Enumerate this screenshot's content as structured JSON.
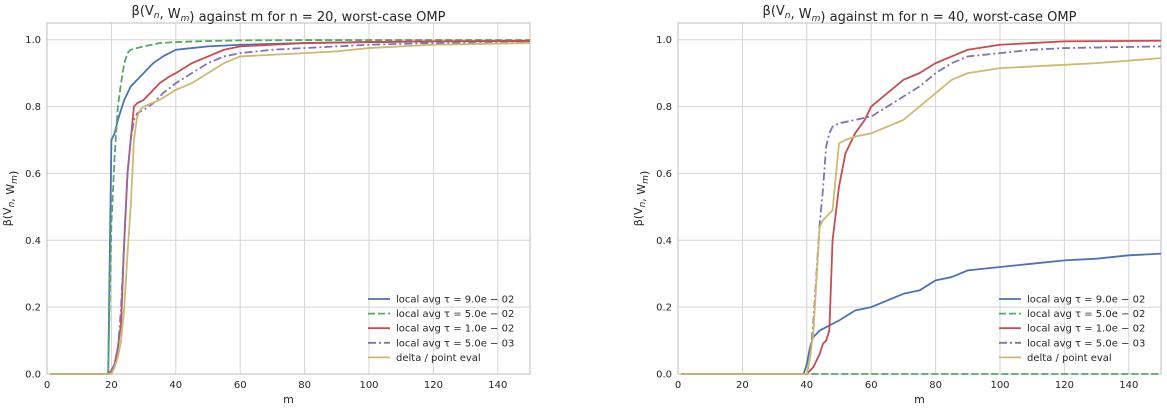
{
  "chart_data": [
    {
      "type": "line",
      "title": "β(V_n, W_m) against m for n = 20, worst-case OMP",
      "xlabel": "m",
      "ylabel": "β(V_n, W_m)",
      "xlim": [
        0,
        150
      ],
      "ylim": [
        0,
        1.05
      ],
      "xticks": [
        0,
        20,
        40,
        60,
        80,
        100,
        120,
        140
      ],
      "yticks": [
        0.0,
        0.2,
        0.4,
        0.6,
        0.8,
        1.0
      ],
      "xtick_labels": [
        "0",
        "20",
        "40",
        "60",
        "80",
        "100",
        "120",
        "140"
      ],
      "ytick_labels": [
        "0.0",
        "0.2",
        "0.4",
        "0.6",
        "0.8",
        "1.0"
      ],
      "grid": true,
      "legend": "lower-right",
      "series": [
        {
          "name": "local avg τ = 9.0e − 02",
          "color": "#4c72b0",
          "style": "solid",
          "x": [
            1,
            19,
            20,
            21,
            22,
            24,
            26,
            28,
            30,
            33,
            36,
            40,
            45,
            50,
            60,
            80,
            100,
            120,
            150
          ],
          "y": [
            0,
            0,
            0.7,
            0.72,
            0.76,
            0.82,
            0.86,
            0.88,
            0.9,
            0.93,
            0.95,
            0.97,
            0.975,
            0.98,
            0.985,
            0.99,
            0.993,
            0.995,
            0.997
          ]
        },
        {
          "name": "local avg τ = 5.0e − 02",
          "color": "#55a868",
          "style": "dashed",
          "x": [
            1,
            19,
            20,
            21,
            22,
            23,
            24,
            25,
            26,
            30,
            35,
            40,
            50,
            60,
            80,
            100,
            150
          ],
          "y": [
            0,
            0,
            0.45,
            0.65,
            0.8,
            0.87,
            0.93,
            0.96,
            0.97,
            0.98,
            0.99,
            0.993,
            0.996,
            0.998,
            0.999,
            0.999,
            0.999
          ]
        },
        {
          "name": "local avg τ = 1.0e − 02",
          "color": "#c44e52",
          "style": "solid",
          "x": [
            1,
            19,
            20,
            21,
            22,
            23,
            24,
            25,
            26,
            27,
            28,
            30,
            32,
            35,
            38,
            40,
            45,
            50,
            55,
            60,
            70,
            80,
            100,
            120,
            150
          ],
          "y": [
            0,
            0,
            0.01,
            0.03,
            0.08,
            0.15,
            0.4,
            0.6,
            0.7,
            0.8,
            0.81,
            0.82,
            0.84,
            0.87,
            0.89,
            0.9,
            0.93,
            0.95,
            0.97,
            0.98,
            0.985,
            0.99,
            0.993,
            0.995,
            0.996
          ]
        },
        {
          "name": "local avg τ = 5.0e − 03",
          "color": "#8172b2",
          "style": "dashdot",
          "x": [
            1,
            19,
            20,
            21,
            22,
            23,
            24,
            25,
            26,
            27,
            28,
            30,
            33,
            36,
            40,
            45,
            50,
            55,
            60,
            70,
            80,
            90,
            100,
            120,
            150
          ],
          "y": [
            0,
            0,
            0.01,
            0.03,
            0.07,
            0.2,
            0.4,
            0.6,
            0.7,
            0.76,
            0.78,
            0.79,
            0.81,
            0.84,
            0.87,
            0.9,
            0.93,
            0.95,
            0.96,
            0.97,
            0.975,
            0.98,
            0.985,
            0.99,
            0.99
          ]
        },
        {
          "name": "delta / point eval",
          "color": "#ccb974",
          "style": "solid",
          "x": [
            1,
            19,
            20,
            21,
            22,
            23,
            24,
            25,
            26,
            27,
            28,
            29,
            30,
            35,
            40,
            45,
            50,
            55,
            60,
            70,
            80,
            90,
            100,
            110,
            120,
            150
          ],
          "y": [
            0,
            0,
            0,
            0.02,
            0.05,
            0.1,
            0.2,
            0.36,
            0.5,
            0.7,
            0.77,
            0.79,
            0.8,
            0.82,
            0.85,
            0.87,
            0.9,
            0.93,
            0.95,
            0.955,
            0.96,
            0.965,
            0.975,
            0.98,
            0.985,
            0.99
          ]
        }
      ]
    },
    {
      "type": "line",
      "title": "β(V_n, W_m) against m for n = 40, worst-case OMP",
      "xlabel": "m",
      "ylabel": "β(V_n, W_m)",
      "xlim": [
        0,
        150
      ],
      "ylim": [
        0,
        1.05
      ],
      "xticks": [
        0,
        20,
        40,
        60,
        80,
        100,
        120,
        140
      ],
      "yticks": [
        0.0,
        0.2,
        0.4,
        0.6,
        0.8,
        1.0
      ],
      "xtick_labels": [
        "0",
        "20",
        "40",
        "60",
        "80",
        "100",
        "120",
        "140"
      ],
      "ytick_labels": [
        "0.0",
        "0.2",
        "0.4",
        "0.6",
        "0.8",
        "1.0"
      ],
      "grid": true,
      "legend": "lower-right",
      "series": [
        {
          "name": "local avg τ = 9.0e − 02",
          "color": "#4c72b0",
          "style": "solid",
          "x": [
            1,
            39,
            40,
            41,
            42,
            43,
            44,
            46,
            50,
            55,
            60,
            65,
            70,
            75,
            80,
            85,
            90,
            100,
            110,
            120,
            130,
            140,
            150
          ],
          "y": [
            0,
            0,
            0.03,
            0.08,
            0.11,
            0.12,
            0.13,
            0.14,
            0.16,
            0.19,
            0.2,
            0.22,
            0.24,
            0.25,
            0.28,
            0.29,
            0.31,
            0.32,
            0.33,
            0.34,
            0.345,
            0.355,
            0.36
          ]
        },
        {
          "name": "local avg τ = 5.0e − 02",
          "color": "#55a868",
          "style": "dashed",
          "x": [
            1,
            150
          ],
          "y": [
            0,
            0
          ]
        },
        {
          "name": "local avg τ = 1.0e − 02",
          "color": "#c44e52",
          "style": "solid",
          "x": [
            1,
            40,
            42,
            44,
            45,
            46,
            47,
            48,
            50,
            52,
            55,
            58,
            60,
            65,
            70,
            75,
            80,
            85,
            90,
            100,
            110,
            120,
            150
          ],
          "y": [
            0,
            0,
            0.02,
            0.06,
            0.09,
            0.1,
            0.13,
            0.4,
            0.56,
            0.66,
            0.72,
            0.76,
            0.8,
            0.84,
            0.88,
            0.9,
            0.93,
            0.95,
            0.97,
            0.985,
            0.99,
            0.995,
            0.997
          ]
        },
        {
          "name": "local avg τ = 5.0e − 03",
          "color": "#8172b2",
          "style": "dashdot",
          "x": [
            1,
            40,
            41,
            42,
            43,
            44,
            45,
            46,
            47,
            48,
            50,
            55,
            60,
            65,
            70,
            75,
            80,
            85,
            90,
            100,
            110,
            120,
            150
          ],
          "y": [
            0,
            0,
            0.05,
            0.15,
            0.3,
            0.45,
            0.55,
            0.68,
            0.72,
            0.74,
            0.75,
            0.76,
            0.77,
            0.8,
            0.83,
            0.86,
            0.9,
            0.93,
            0.95,
            0.96,
            0.97,
            0.975,
            0.98
          ]
        },
        {
          "name": "delta / point eval",
          "color": "#ccb974",
          "style": "solid",
          "x": [
            1,
            40,
            41,
            42,
            43,
            44,
            45,
            46,
            47,
            48,
            50,
            52,
            55,
            60,
            65,
            70,
            75,
            80,
            85,
            90,
            100,
            110,
            120,
            130,
            150
          ],
          "y": [
            0,
            0,
            0.05,
            0.12,
            0.28,
            0.44,
            0.46,
            0.47,
            0.48,
            0.49,
            0.69,
            0.7,
            0.71,
            0.72,
            0.74,
            0.76,
            0.8,
            0.84,
            0.88,
            0.9,
            0.915,
            0.92,
            0.925,
            0.93,
            0.945
          ]
        }
      ]
    }
  ]
}
